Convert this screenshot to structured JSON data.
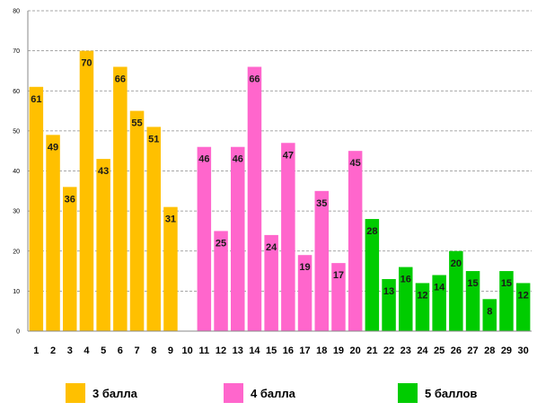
{
  "chart_data": {
    "type": "bar",
    "categories": [
      "1",
      "2",
      "3",
      "4",
      "5",
      "6",
      "7",
      "8",
      "9",
      "10",
      "11",
      "12",
      "13",
      "14",
      "15",
      "16",
      "17",
      "18",
      "19",
      "20",
      "21",
      "22",
      "23",
      "24",
      "25",
      "26",
      "27",
      "28",
      "29",
      "30"
    ],
    "series": [
      {
        "name": "3 балла",
        "color": "#FFC000",
        "values": [
          61,
          49,
          36,
          70,
          43,
          66,
          55,
          51,
          31,
          null,
          null,
          null,
          null,
          null,
          null,
          null,
          null,
          null,
          null,
          null,
          null,
          null,
          null,
          null,
          null,
          null,
          null,
          null,
          null,
          null
        ]
      },
      {
        "name": "4 балла",
        "color": "#FF66CC",
        "values": [
          null,
          null,
          null,
          null,
          null,
          null,
          null,
          null,
          null,
          null,
          46,
          25,
          46,
          66,
          24,
          47,
          19,
          35,
          17,
          45,
          null,
          null,
          null,
          null,
          null,
          null,
          null,
          null,
          null,
          null
        ]
      },
      {
        "name": "5 баллов",
        "color": "#00CC00",
        "values": [
          null,
          null,
          null,
          null,
          null,
          null,
          null,
          null,
          null,
          null,
          null,
          null,
          null,
          null,
          null,
          null,
          null,
          null,
          null,
          null,
          28,
          13,
          16,
          12,
          14,
          20,
          15,
          8,
          15,
          12
        ]
      }
    ],
    "yticks": [
      "0",
      "10",
      "20",
      "30",
      "40",
      "50",
      "60",
      "70",
      "80"
    ],
    "ylim": [
      0,
      80
    ],
    "grid": true,
    "legend_position": "bottom",
    "title": "",
    "xlabel": "",
    "ylabel": ""
  },
  "legend": {
    "items": [
      {
        "label": "3 балла",
        "color": "#FFC000"
      },
      {
        "label": "4 балла",
        "color": "#FF66CC"
      },
      {
        "label": "5 баллов",
        "color": "#00CC00"
      }
    ]
  }
}
